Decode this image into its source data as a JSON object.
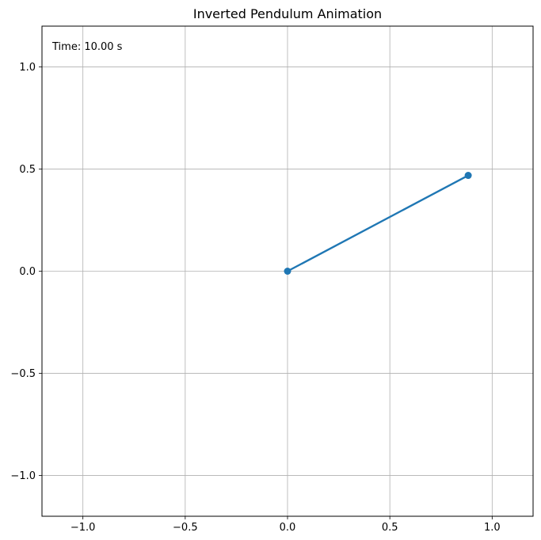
{
  "chart_data": {
    "type": "line",
    "title": "Inverted Pendulum Animation",
    "xlabel": "",
    "ylabel": "",
    "xlim": [
      -1.2,
      1.2
    ],
    "ylim": [
      -1.2,
      1.2
    ],
    "grid": true,
    "legend": "none",
    "xticks": [
      -1.0,
      -0.5,
      0.0,
      0.5,
      1.0
    ],
    "yticks": [
      -1.0,
      -0.5,
      0.0,
      0.5,
      1.0
    ],
    "xtick_labels": [
      "−1.0",
      "−0.5",
      "0.0",
      "0.5",
      "1.0"
    ],
    "ytick_labels": [
      "−1.0",
      "−0.5",
      "0.0",
      "0.5",
      "1.0"
    ],
    "series": [
      {
        "x": [
          0.0,
          0.883
        ],
        "y": [
          0.0,
          0.469
        ],
        "color": "#1f77b4",
        "marker": "circle"
      }
    ],
    "annotation": "Time: 10.00 s"
  }
}
